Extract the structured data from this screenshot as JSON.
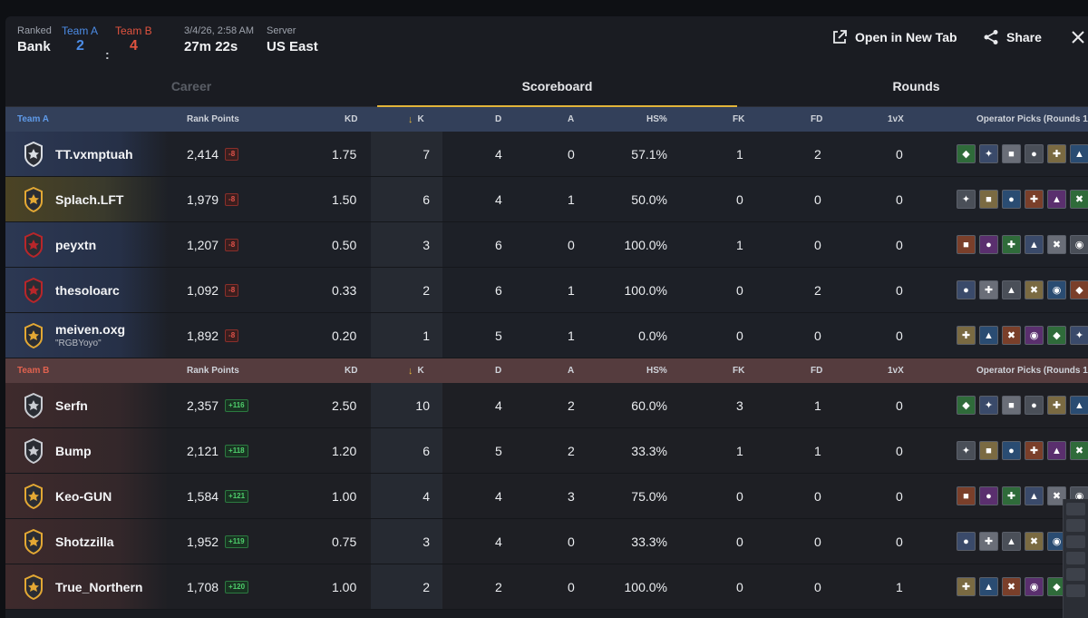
{
  "header": {
    "mode_label": "Ranked",
    "map": "Bank",
    "team_a_label": "Team A",
    "team_b_label": "Team B",
    "score_a": "2",
    "score_sep": ":",
    "score_b": "4",
    "datetime": "3/4/26, 2:58 AM",
    "duration": "27m 22s",
    "server_label": "Server",
    "server": "US East",
    "open_new_tab": "Open in New Tab",
    "share": "Share"
  },
  "tabs": {
    "career": "Career",
    "scoreboard": "Scoreboard",
    "rounds": "Rounds"
  },
  "columns": {
    "rank_points": "Rank Points",
    "kd": "KD",
    "k": "K",
    "d": "D",
    "a": "A",
    "hs": "HS%",
    "fk": "FK",
    "fd": "FD",
    "vx": "1vX",
    "ops": "Operator Picks (Rounds 1-"
  },
  "team_a": {
    "name": "Team A",
    "players": [
      {
        "name": "TT.vxmptuah",
        "alias": "",
        "rp": "2,414",
        "delta": "-8",
        "kd": "1.75",
        "k": "7",
        "d": "4",
        "a": "0",
        "hs": "57.1%",
        "fk": "1",
        "fd": "2",
        "vx": "0",
        "badge": "#d9dde3"
      },
      {
        "name": "Splach.LFT",
        "alias": "",
        "rp": "1,979",
        "delta": "-8",
        "kd": "1.50",
        "k": "6",
        "d": "4",
        "a": "1",
        "hs": "50.0%",
        "fk": "0",
        "fd": "0",
        "vx": "0",
        "badge": "#e3a834"
      },
      {
        "name": "peyxtn",
        "alias": "",
        "rp": "1,207",
        "delta": "-8",
        "kd": "0.50",
        "k": "3",
        "d": "6",
        "a": "0",
        "hs": "100.0%",
        "fk": "1",
        "fd": "0",
        "vx": "0",
        "badge": "#b8262a"
      },
      {
        "name": "thesoloarc",
        "alias": "",
        "rp": "1,092",
        "delta": "-8",
        "kd": "0.33",
        "k": "2",
        "d": "6",
        "a": "1",
        "hs": "100.0%",
        "fk": "0",
        "fd": "2",
        "vx": "0",
        "badge": "#b8262a"
      },
      {
        "name": "meiven.oxg",
        "alias": "\"RGBYoyo\"",
        "rp": "1,892",
        "delta": "-8",
        "kd": "0.20",
        "k": "1",
        "d": "5",
        "a": "1",
        "hs": "0.0%",
        "fk": "0",
        "fd": "0",
        "vx": "0",
        "badge": "#e3a834"
      }
    ]
  },
  "team_b": {
    "name": "Team B",
    "players": [
      {
        "name": "Serfn",
        "alias": "",
        "rp": "2,357",
        "delta": "+116",
        "kd": "2.50",
        "k": "10",
        "d": "4",
        "a": "2",
        "hs": "60.0%",
        "fk": "3",
        "fd": "1",
        "vx": "0",
        "badge": "#c9ccd2"
      },
      {
        "name": "Bump",
        "alias": "",
        "rp": "2,121",
        "delta": "+118",
        "kd": "1.20",
        "k": "6",
        "d": "5",
        "a": "2",
        "hs": "33.3%",
        "fk": "1",
        "fd": "1",
        "vx": "0",
        "badge": "#c9ccd2"
      },
      {
        "name": "Keo-GUN",
        "alias": "",
        "rp": "1,584",
        "delta": "+121",
        "kd": "1.00",
        "k": "4",
        "d": "4",
        "a": "3",
        "hs": "75.0%",
        "fk": "0",
        "fd": "0",
        "vx": "0",
        "badge": "#e3a834"
      },
      {
        "name": "Shotzzilla",
        "alias": "",
        "rp": "1,952",
        "delta": "+119",
        "kd": "0.75",
        "k": "3",
        "d": "4",
        "a": "0",
        "hs": "33.3%",
        "fk": "0",
        "fd": "0",
        "vx": "0",
        "badge": "#e3a834"
      },
      {
        "name": "True_Northern",
        "alias": "",
        "rp": "1,708",
        "delta": "+120",
        "kd": "1.00",
        "k": "2",
        "d": "2",
        "a": "0",
        "hs": "100.0%",
        "fk": "0",
        "fd": "0",
        "vx": "1",
        "badge": "#e3a834"
      }
    ]
  },
  "operator_colors": [
    "#2f6b3a",
    "#3a4a6a",
    "#6a6e78",
    "#4a4f58",
    "#7a6a42",
    "#2a4c72",
    "#7a3f2a",
    "#5a2f6e"
  ]
}
